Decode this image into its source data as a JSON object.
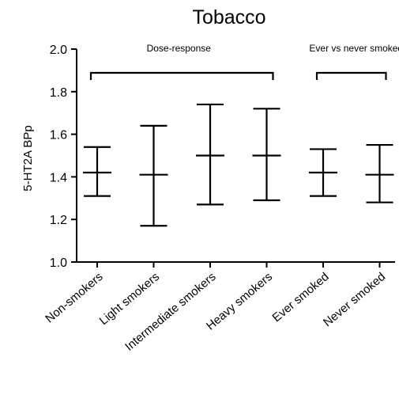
{
  "chart_data": {
    "type": "errorbar",
    "title": "Tobacco",
    "ylabel": "5-HT2A  BPp",
    "xlabel": "",
    "ylim": [
      1.0,
      2.0
    ],
    "yticks": [
      1.0,
      1.2,
      1.4,
      1.6,
      1.8,
      2.0
    ],
    "ytick_labels": [
      "1.0",
      "1.2",
      "1.4",
      "1.6",
      "1.8",
      "2.0"
    ],
    "categories": [
      "Non-smokers",
      "Light smokers",
      "Intermediate smokers",
      "Heavy smokers",
      "Ever smoked",
      "Never smoked"
    ],
    "mean": [
      1.42,
      1.41,
      1.5,
      1.5,
      1.42,
      1.41
    ],
    "upper": [
      1.54,
      1.64,
      1.74,
      1.72,
      1.53,
      1.55
    ],
    "lower": [
      1.31,
      1.17,
      1.27,
      1.29,
      1.31,
      1.28
    ],
    "groups": [
      {
        "label": "Dose-response",
        "from": 0,
        "to": 3
      },
      {
        "label": "Ever vs never smoked",
        "from": 4,
        "to": 5
      }
    ],
    "grid": false,
    "legend": "none"
  }
}
